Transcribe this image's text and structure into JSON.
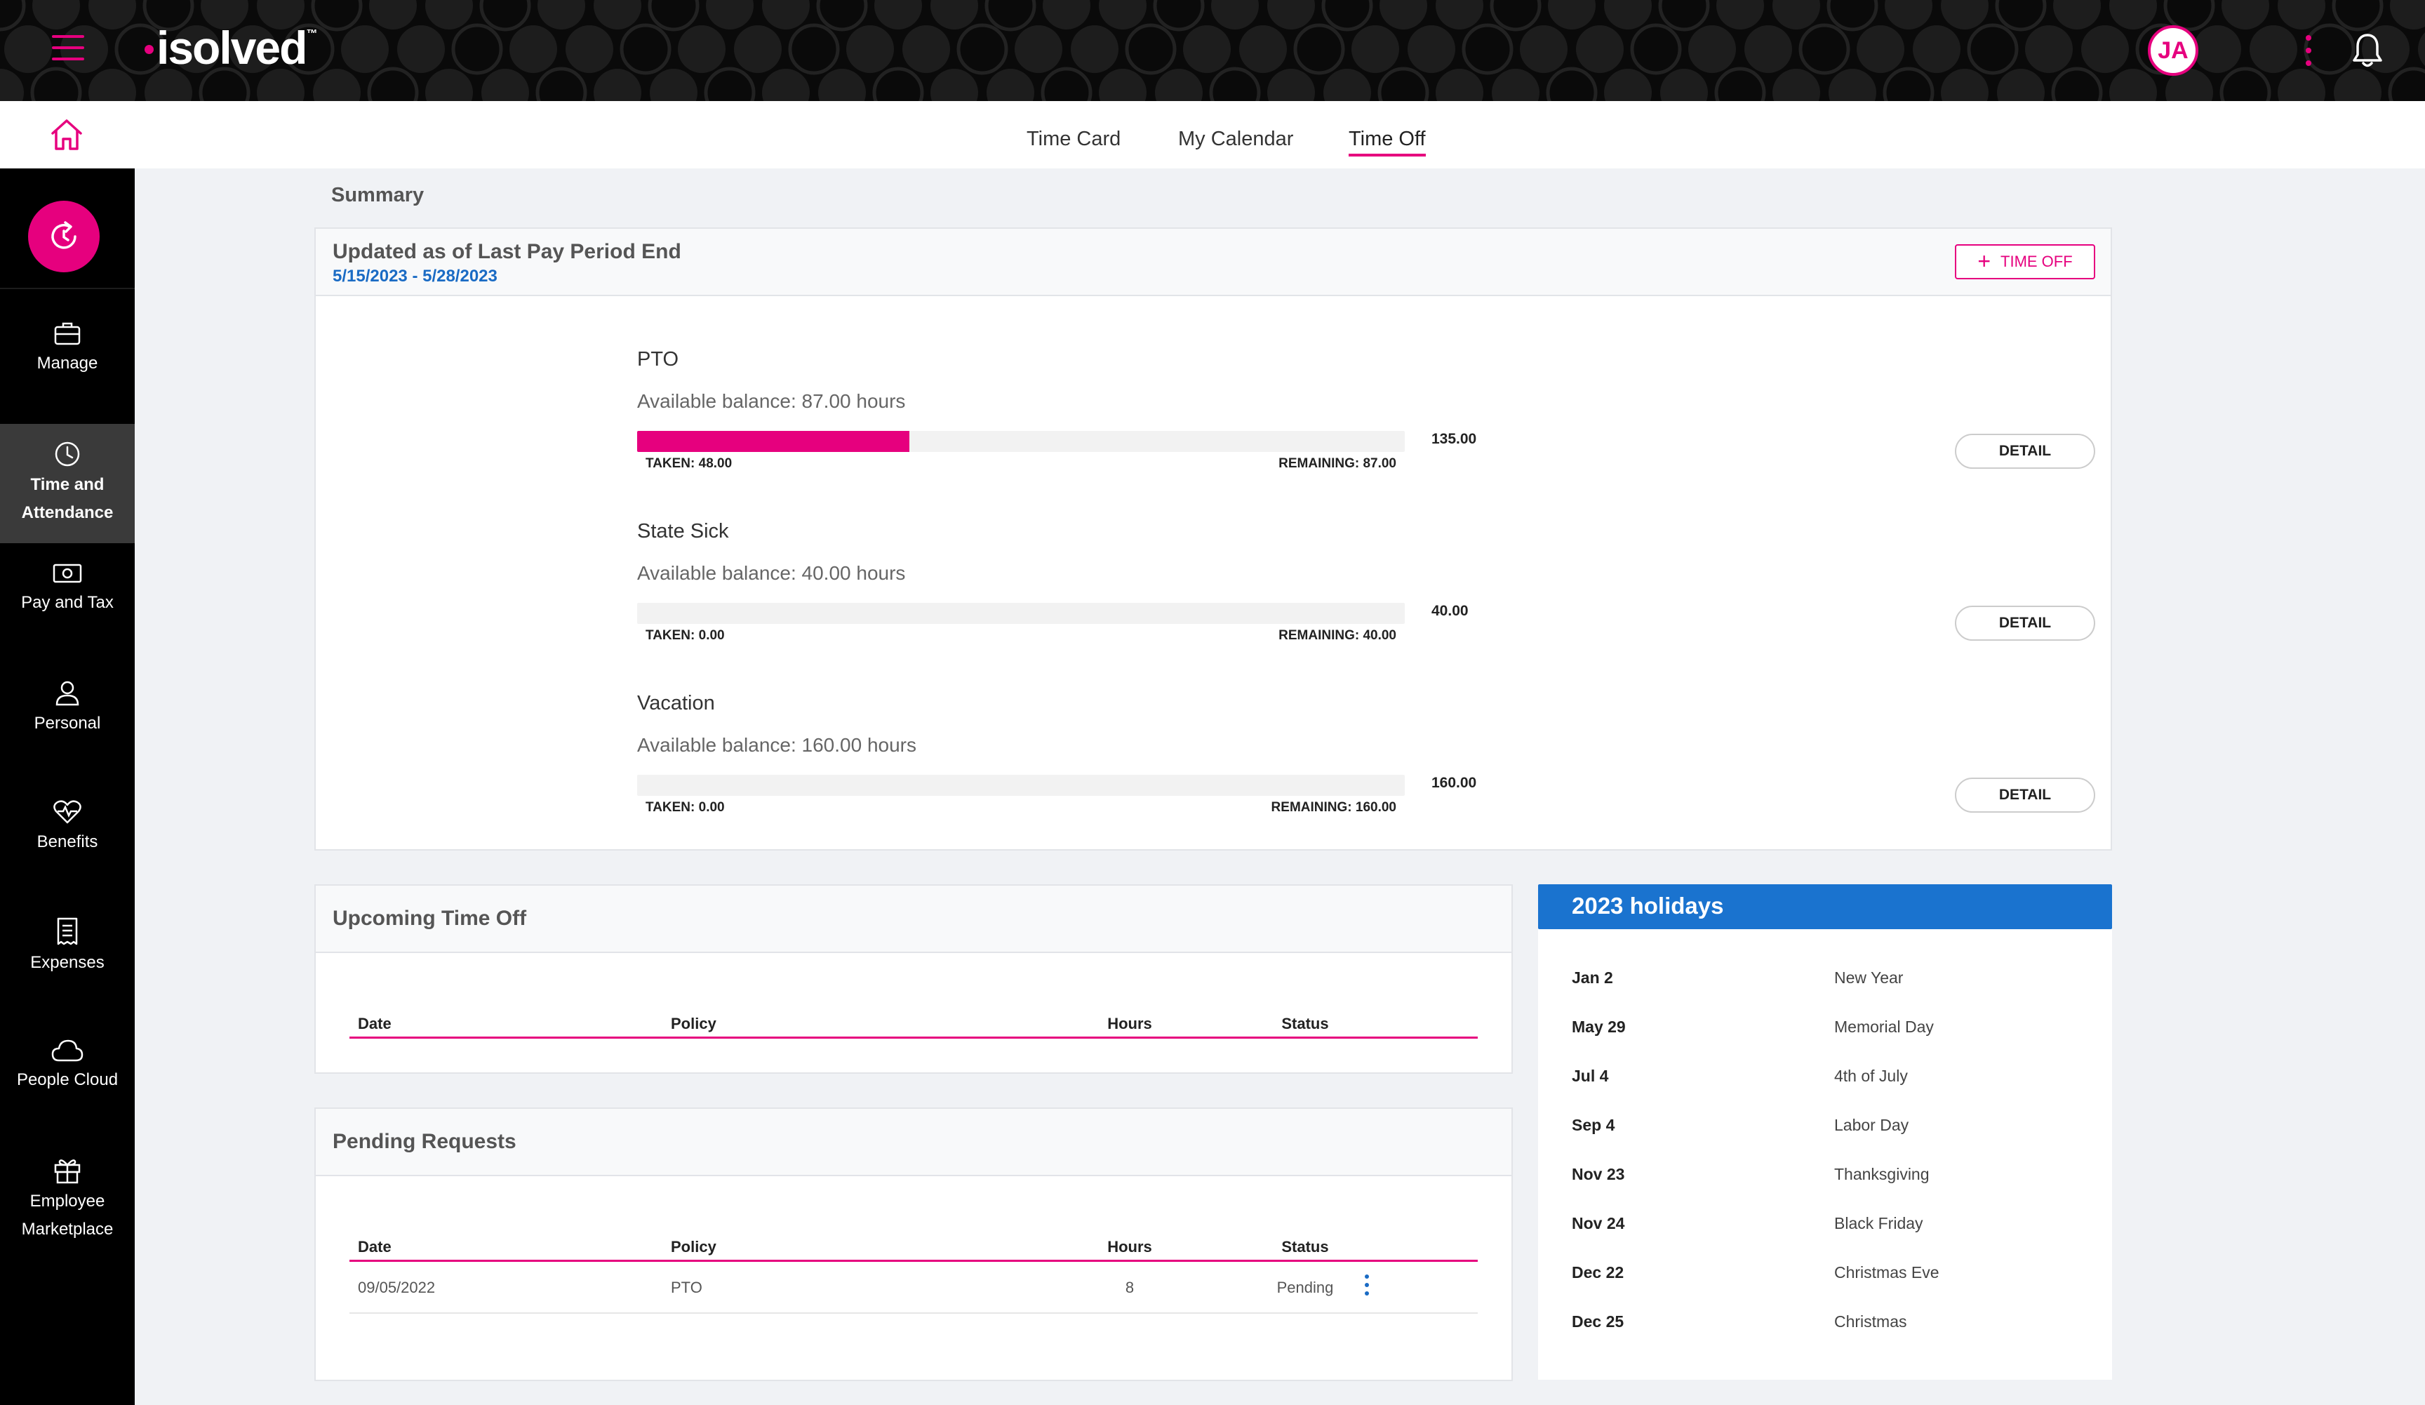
{
  "brand": {
    "logo_text": "isolved",
    "logo_mark": "™",
    "accent": "#e6007e",
    "link_color": "#1a6bc4"
  },
  "user": {
    "initials": "JA"
  },
  "tabs": [
    {
      "label": "Time Card",
      "active": false
    },
    {
      "label": "My Calendar",
      "active": false
    },
    {
      "label": "Time Off",
      "active": true
    }
  ],
  "sidebar": {
    "items": [
      {
        "label": "Manage",
        "icon": "briefcase-icon",
        "active": false
      },
      {
        "label": "Time and\nAttendance",
        "icon": "clock-icon",
        "active": true
      },
      {
        "label": "Pay and Tax",
        "icon": "money-icon",
        "active": false
      },
      {
        "label": "Personal",
        "icon": "person-icon",
        "active": false
      },
      {
        "label": "Benefits",
        "icon": "heart-pulse-icon",
        "active": false
      },
      {
        "label": "Expenses",
        "icon": "receipt-icon",
        "active": false
      },
      {
        "label": "People Cloud",
        "icon": "cloud-icon",
        "active": false
      },
      {
        "label": "Employee\nMarketplace",
        "icon": "gift-icon",
        "active": false
      }
    ]
  },
  "summary": {
    "section_title": "Summary",
    "header_title": "Updated as of Last Pay Period End",
    "period": "5/15/2023 - 5/28/2023",
    "time_off_button": "TIME OFF",
    "policies": [
      {
        "name": "PTO",
        "balance": "Available balance: 87.00 hours",
        "taken": "TAKEN: 48.00",
        "remaining": "REMAINING: 87.00",
        "total": "135.00",
        "taken_fraction": 0.355,
        "detail_label": "DETAIL"
      },
      {
        "name": "State Sick",
        "balance": "Available balance: 40.00 hours",
        "taken": "TAKEN: 0.00",
        "remaining": "REMAINING: 40.00",
        "total": "40.00",
        "taken_fraction": 0,
        "detail_label": "DETAIL"
      },
      {
        "name": "Vacation",
        "balance": "Available balance: 160.00 hours",
        "taken": "TAKEN: 0.00",
        "remaining": "REMAINING: 160.00",
        "total": "160.00",
        "taken_fraction": 0,
        "detail_label": "DETAIL"
      }
    ]
  },
  "upcoming": {
    "title": "Upcoming Time Off",
    "columns": [
      "Date",
      "Policy",
      "Hours",
      "Status"
    ],
    "rows": []
  },
  "pending": {
    "title": "Pending Requests",
    "columns": [
      "Date",
      "Policy",
      "Hours",
      "Status"
    ],
    "rows": [
      {
        "date": "09/05/2022",
        "policy": "PTO",
        "hours": "8",
        "status": "Pending"
      }
    ]
  },
  "holidays": {
    "title": "2023 holidays",
    "items": [
      {
        "date": "Jan 2",
        "name": "New Year"
      },
      {
        "date": "May 29",
        "name": "Memorial Day"
      },
      {
        "date": "Jul 4",
        "name": "4th of July"
      },
      {
        "date": "Sep 4",
        "name": "Labor Day"
      },
      {
        "date": "Nov 23",
        "name": "Thanksgiving"
      },
      {
        "date": "Nov 24",
        "name": "Black Friday"
      },
      {
        "date": "Dec 22",
        "name": "Christmas Eve"
      },
      {
        "date": "Dec 25",
        "name": "Christmas"
      }
    ]
  }
}
